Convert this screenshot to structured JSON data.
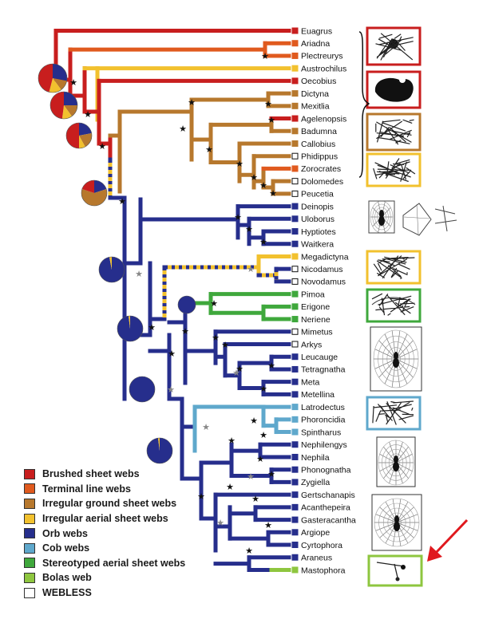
{
  "colors": {
    "brushed": "#c81e1e",
    "terminal": "#e05a1e",
    "irregular_ground": "#b7782d",
    "irregular_aerial": "#f2c12e",
    "orb": "#262e8c",
    "cob": "#5fa8cc",
    "stereotyped": "#3fa83c",
    "bolas": "#8ec63f",
    "webless": "#ffffff"
  },
  "taxa": [
    {
      "name": "Euagrus",
      "color": "brushed"
    },
    {
      "name": "Ariadna",
      "color": "terminal"
    },
    {
      "name": "Plectreurys",
      "color": "terminal"
    },
    {
      "name": "Austrochilus",
      "color": "irregular_aerial"
    },
    {
      "name": "Oecobius",
      "color": "brushed"
    },
    {
      "name": "Dictyna",
      "color": "irregular_ground"
    },
    {
      "name": "Mexitlia",
      "color": "irregular_ground"
    },
    {
      "name": "Agelenopsis",
      "color": "brushed"
    },
    {
      "name": "Badumna",
      "color": "irregular_ground"
    },
    {
      "name": "Callobius",
      "color": "irregular_ground"
    },
    {
      "name": "Phidippus",
      "color": "webless"
    },
    {
      "name": "Zorocrates",
      "color": "terminal"
    },
    {
      "name": "Dolomedes",
      "color": "webless"
    },
    {
      "name": "Peucetia",
      "color": "webless"
    },
    {
      "name": "Deinopis",
      "color": "orb"
    },
    {
      "name": "Uloborus",
      "color": "orb"
    },
    {
      "name": "Hyptiotes",
      "color": "orb"
    },
    {
      "name": "Waitkera",
      "color": "orb"
    },
    {
      "name": "Megadictyna",
      "color": "irregular_aerial"
    },
    {
      "name": "Nicodamus",
      "color": "webless"
    },
    {
      "name": "Novodamus",
      "color": "webless"
    },
    {
      "name": "Pimoa",
      "color": "stereotyped"
    },
    {
      "name": "Erigone",
      "color": "stereotyped"
    },
    {
      "name": "Neriene",
      "color": "stereotyped"
    },
    {
      "name": "Mimetus",
      "color": "webless"
    },
    {
      "name": "Arkys",
      "color": "webless"
    },
    {
      "name": "Leucauge",
      "color": "orb"
    },
    {
      "name": "Tetragnatha",
      "color": "orb"
    },
    {
      "name": "Meta",
      "color": "orb"
    },
    {
      "name": "Metellina",
      "color": "orb"
    },
    {
      "name": "Latrodectus",
      "color": "cob"
    },
    {
      "name": "Phoroncidia",
      "color": "cob"
    },
    {
      "name": "Spintharus",
      "color": "cob"
    },
    {
      "name": "Nephilengys",
      "color": "orb"
    },
    {
      "name": "Nephila",
      "color": "orb"
    },
    {
      "name": "Phonognatha",
      "color": "orb"
    },
    {
      "name": "Zygiella",
      "color": "orb"
    },
    {
      "name": "Gertschanapis",
      "color": "orb"
    },
    {
      "name": "Acanthepeira",
      "color": "orb"
    },
    {
      "name": "Gasteracantha",
      "color": "orb"
    },
    {
      "name": "Argiope",
      "color": "orb"
    },
    {
      "name": "Cyrtophora",
      "color": "orb"
    },
    {
      "name": "Araneus",
      "color": "orb"
    },
    {
      "name": "Mastophora",
      "color": "bolas"
    }
  ],
  "legend": [
    {
      "label": "Brushed sheet webs",
      "color": "brushed"
    },
    {
      "label": "Terminal line webs",
      "color": "terminal"
    },
    {
      "label": "Irregular ground sheet webs",
      "color": "irregular_ground"
    },
    {
      "label": "Irregular aerial sheet webs",
      "color": "irregular_aerial"
    },
    {
      "label": "Orb webs",
      "color": "orb"
    },
    {
      "label": "Cob webs",
      "color": "cob"
    },
    {
      "label": "Stereotyped aerial sheet webs",
      "color": "stereotyped"
    },
    {
      "label": "Bolas web",
      "color": "bolas"
    },
    {
      "label": "WEBLESS",
      "color": "webless"
    }
  ],
  "web_icons": [
    "brushed-sheet-web-icon",
    "oecobius-web-icon",
    "irregular-ground-sheet-web-icon",
    "irregular-aerial-sheet-web-icon",
    "deinopid-web-icons",
    "megadictyna-web-icon",
    "linyphiid-sheet-web-icon",
    "orb-web-icon",
    "cob-web-icon",
    "nephila-orb-web-icon",
    "araneid-orb-web-icon",
    "bolas-web-icon"
  ],
  "annotation": {
    "arrow_color": "#e0191e"
  }
}
